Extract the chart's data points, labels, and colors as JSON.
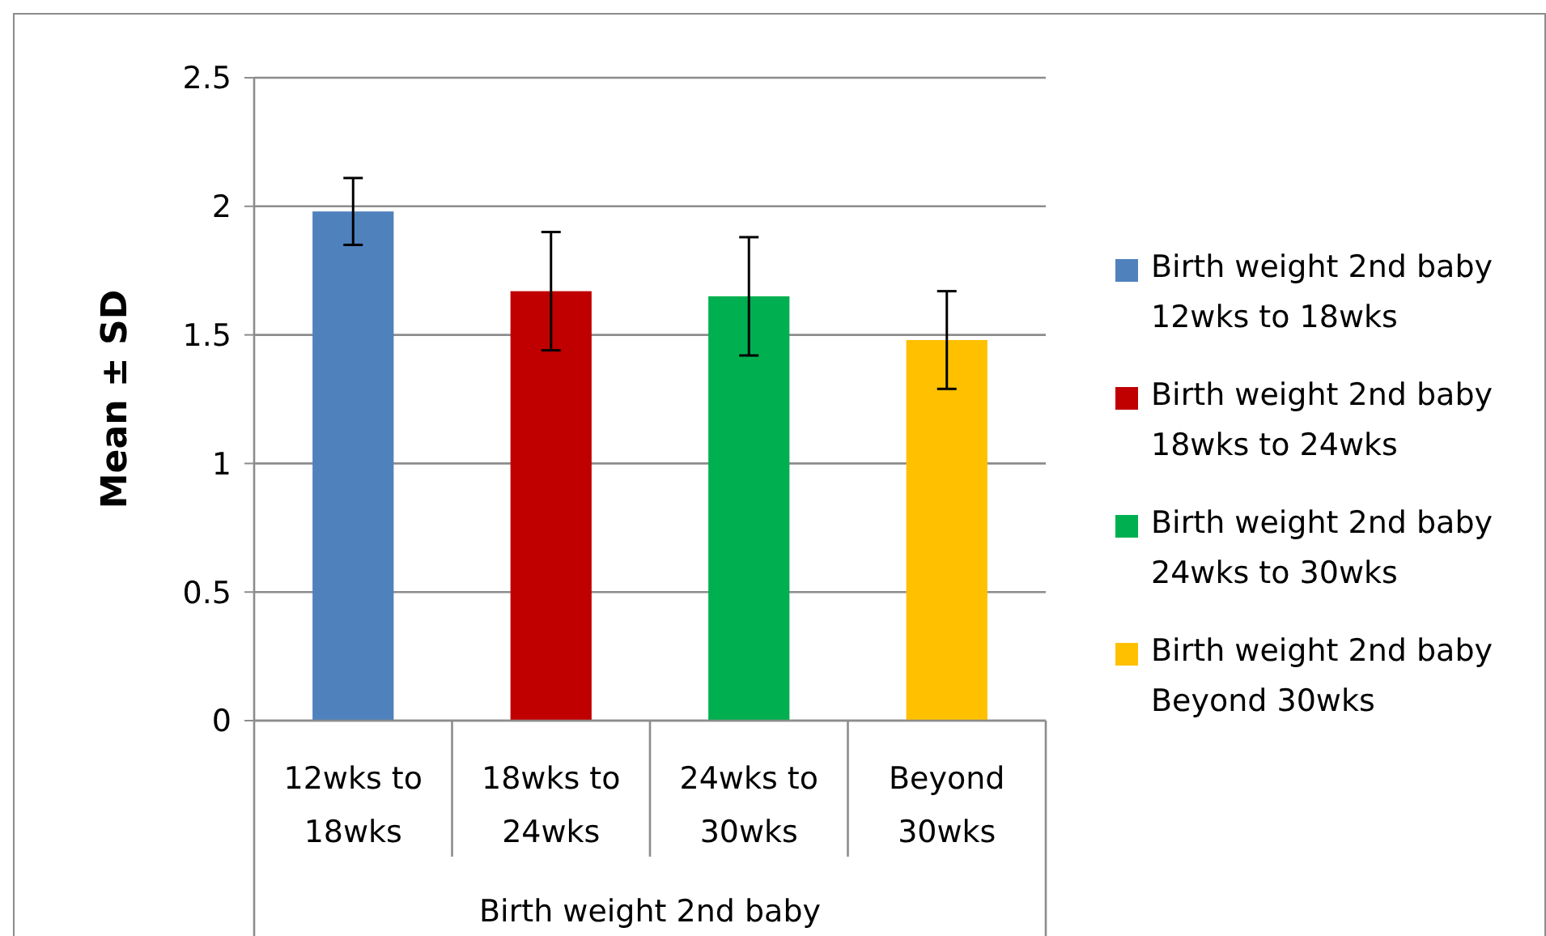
{
  "chart_data": {
    "type": "bar",
    "stacked": true,
    "ylabel": "Mean ± SD",
    "xlabel": "Birth weight 2nd baby",
    "categories": [
      "12wks to 18wks",
      "18wks to 24wks",
      "24wks to 30wks",
      "Beyond 30wks"
    ],
    "series": [
      {
        "name": "Birth weight 2nd baby 12wks to 18wks",
        "color": "#4f81bd",
        "values": [
          1.98,
          null,
          null,
          null
        ],
        "errors": [
          0.13,
          null,
          null,
          null
        ]
      },
      {
        "name": "Birth weight 2nd baby 18wks to 24wks",
        "color": "#c00000",
        "values": [
          null,
          1.67,
          null,
          null
        ],
        "errors": [
          null,
          0.23,
          null,
          null
        ]
      },
      {
        "name": "Birth weight 2nd baby 24wks to 30wks",
        "color": "#00b050",
        "values": [
          null,
          null,
          1.65,
          null
        ],
        "errors": [
          null,
          null,
          0.23,
          null
        ]
      },
      {
        "name": "Birth weight 2nd baby Beyond 30wks",
        "color": "#ffc000",
        "values": [
          null,
          null,
          null,
          1.48
        ],
        "errors": [
          null,
          null,
          null,
          0.19
        ]
      }
    ],
    "ylim": [
      0,
      2.5
    ],
    "yticks": [
      0,
      0.5,
      1,
      1.5,
      2,
      2.5
    ],
    "grid": "y",
    "legend": "right"
  }
}
